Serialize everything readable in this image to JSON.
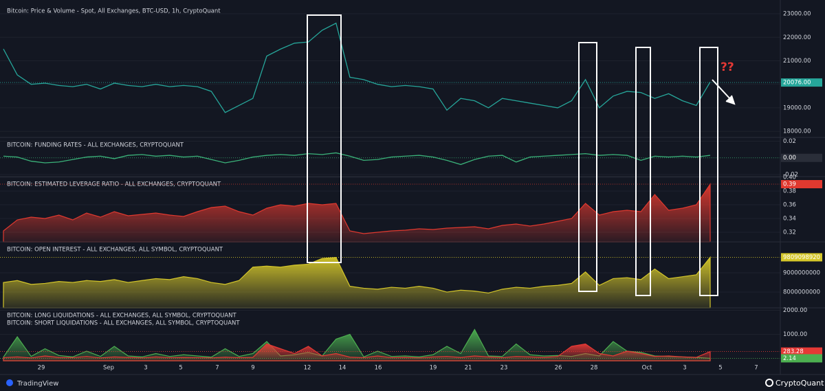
{
  "chart_data": [
    {
      "type": "line",
      "title": "Bitcoin: Price & Volume - Spot, All Exchanges, BTC-USD, 1h, CryptoQuant",
      "series": [
        {
          "color": "#26a69a",
          "values": [
            21500,
            20400,
            20000,
            20050,
            19950,
            19900,
            20000,
            19800,
            20050,
            19950,
            19900,
            20000,
            19900,
            19950,
            19900,
            19700,
            18800,
            19100,
            19400,
            21200,
            21500,
            21750,
            21800,
            22300,
            22600,
            20300,
            20200,
            20000,
            19900,
            19950,
            19900,
            19800,
            18900,
            19400,
            19300,
            19000,
            19400,
            19300,
            19200,
            19100,
            19000,
            19300,
            20200,
            19000,
            19500,
            19700,
            19650,
            19400,
            19600,
            19300,
            19100,
            20100
          ]
        }
      ],
      "ylim": [
        17740,
        23440
      ],
      "yticks": [
        {
          "value": 18000,
          "label": "18000.00"
        },
        {
          "value": 19000,
          "label": "19000.00"
        },
        {
          "value": 20000,
          "label": "20000.00"
        },
        {
          "value": 21000,
          "label": "21000.00"
        },
        {
          "value": 22000,
          "label": "22000.00"
        },
        {
          "value": 23000,
          "label": "23000.00"
        }
      ],
      "current": {
        "value": 20076,
        "label": "20076.00",
        "color": "#26a69a"
      }
    },
    {
      "type": "line",
      "title": "BITCOIN: FUNDING RATES - ALL EXCHANGES, CRYPTOQUANT",
      "series": [
        {
          "color": "#3bb37a",
          "values": [
            0.002,
            0.001,
            -0.004,
            -0.006,
            -0.005,
            -0.002,
            0.001,
            0.002,
            -0.001,
            0.003,
            0.004,
            0.002,
            0.003,
            0.001,
            0.002,
            -0.002,
            -0.006,
            -0.003,
            0.001,
            0.003,
            0.004,
            0.003,
            0.005,
            0.004,
            0.006,
            0.002,
            -0.003,
            -0.002,
            0.001,
            0.002,
            0.003,
            0.001,
            -0.003,
            -0.008,
            -0.002,
            0.002,
            0.003,
            -0.005,
            0.001,
            0.002,
            0.003,
            0.004,
            0.005,
            0.003,
            0.004,
            0.003,
            -0.003,
            0.002,
            0.001,
            0.002,
            0.001,
            0.003
          ]
        }
      ],
      "ylim": [
        -0.0225,
        0.0245
      ],
      "yticks": [
        {
          "value": -0.02,
          "label": "-0.02"
        },
        {
          "value": 0.02,
          "label": "0.02"
        }
      ],
      "current": {
        "value": 0,
        "label": "0.00",
        "color": "#2a2e39"
      }
    },
    {
      "type": "area",
      "title": "BITCOIN: ESTIMATED LEVERAGE RATIO - ALL EXCHANGES, CRYPTOQUANT",
      "series": [
        {
          "color": "#e0392f",
          "values": [
            0.322,
            0.338,
            0.342,
            0.34,
            0.345,
            0.338,
            0.348,
            0.342,
            0.35,
            0.344,
            0.346,
            0.348,
            0.345,
            0.343,
            0.35,
            0.356,
            0.358,
            0.35,
            0.345,
            0.355,
            0.36,
            0.358,
            0.362,
            0.36,
            0.362,
            0.322,
            0.318,
            0.32,
            0.322,
            0.323,
            0.325,
            0.324,
            0.326,
            0.327,
            0.328,
            0.325,
            0.33,
            0.332,
            0.329,
            0.332,
            0.336,
            0.34,
            0.362,
            0.345,
            0.35,
            0.352,
            0.35,
            0.375,
            0.352,
            0.355,
            0.36,
            0.39
          ]
        }
      ],
      "ylim": [
        0.306,
        0.401
      ],
      "yticks": [
        0.32,
        0.34,
        0.36,
        0.38,
        {
          "value": 0.4,
          "label": "0.40"
        }
      ],
      "current": {
        "value": 0.39,
        "label": "0.39",
        "color": "#e0392f"
      }
    },
    {
      "type": "area",
      "title": "BITCOIN: OPEN INTEREST - ALL EXCHANGES, ALL SYMBOL, CRYPTOQUANT",
      "series": [
        {
          "color": "#d4c62a",
          "values": [
            8500000000,
            8600000000,
            8400000000,
            8450000000,
            8550000000,
            8500000000,
            8600000000,
            8550000000,
            8650000000,
            8500000000,
            8600000000,
            8700000000,
            8650000000,
            8800000000,
            8700000000,
            8500000000,
            8400000000,
            8600000000,
            9300000000,
            9350000000,
            9300000000,
            9400000000,
            9450000000,
            9750000000,
            9800000000,
            8300000000,
            8200000000,
            8150000000,
            8250000000,
            8200000000,
            8300000000,
            8200000000,
            8000000000,
            8100000000,
            8050000000,
            7950000000,
            8150000000,
            8250000000,
            8200000000,
            8300000000,
            8350000000,
            8450000000,
            9050000000,
            8350000000,
            8700000000,
            8750000000,
            8650000000,
            9200000000,
            8700000000,
            8800000000,
            8900000000,
            9810000000
          ]
        }
      ],
      "ylim": [
        7180000000,
        10610000000
      ],
      "yticks": [
        8000000000,
        9000000000
      ],
      "current": {
        "value": 9809098920,
        "label": "9809098920",
        "color": "#d4c62a"
      }
    },
    {
      "type": "area",
      "series": [
        {
          "name": "BITCOIN: LONG LIQUIDATIONS - ALL EXCHANGES, ALL SYMBOL, CRYPTOQUANT",
          "color": "#4caf50",
          "values": [
            50,
            900,
            80,
            400,
            120,
            60,
            300,
            80,
            500,
            100,
            60,
            200,
            80,
            150,
            100,
            50,
            400,
            80,
            200,
            700,
            100,
            150,
            250,
            100,
            800,
            1000,
            60,
            300,
            80,
            100,
            60,
            150,
            500,
            200,
            1200,
            100,
            80,
            600,
            150,
            100,
            120,
            80,
            200,
            100,
            700,
            300,
            250,
            100,
            80,
            60,
            40,
            2.14
          ]
        },
        {
          "name": "BITCOIN: SHORT LIQUIDATIONS - ALL EXCHANGES, ALL SYMBOL, CRYPTOQUANT",
          "color": "#e53935",
          "values": [
            30,
            60,
            20,
            100,
            40,
            30,
            80,
            20,
            60,
            40,
            20,
            60,
            30,
            40,
            30,
            20,
            50,
            30,
            40,
            600,
            400,
            200,
            500,
            100,
            200,
            50,
            30,
            100,
            30,
            40,
            20,
            60,
            80,
            40,
            100,
            60,
            30,
            80,
            60,
            40,
            80,
            500,
            600,
            200,
            100,
            300,
            200,
            80,
            100,
            60,
            40,
            283.28
          ]
        }
      ],
      "ylim": [
        -100,
        2100
      ],
      "yticks": [
        {
          "value": 1000,
          "label": "1000.00"
        },
        {
          "value": 2000,
          "label": "2000.00"
        }
      ],
      "currents": [
        {
          "value": 283.28,
          "label": "283.28",
          "color": "#e53935"
        },
        {
          "value": 2.14,
          "label": "2.14",
          "color": "#4caf50"
        }
      ]
    }
  ],
  "x_axis_labels": [
    "29",
    "Sep",
    "3",
    "5",
    "7",
    "9",
    "12",
    "14",
    "16",
    "19",
    "21",
    "23",
    "26",
    "28",
    "Oct",
    "3",
    "5",
    "7"
  ],
  "annotation": "??",
  "footer": {
    "left": "TradingView",
    "right": "CryptoQuant"
  }
}
